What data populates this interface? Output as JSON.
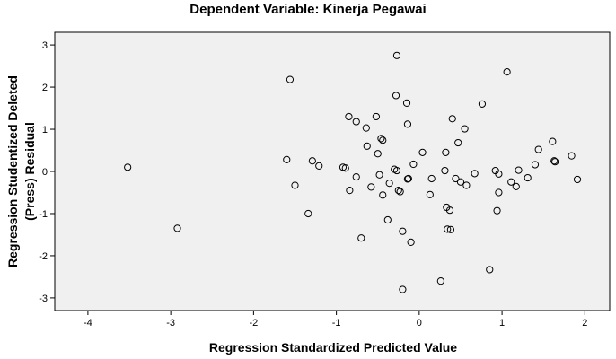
{
  "chart_data": {
    "type": "scatter",
    "title": "Dependent Variable: Kinerja Pegawai",
    "xlabel": "Regression Standardized Predicted Value",
    "ylabel_line1": "Regression Studentized Deleted",
    "ylabel_line2": "(Press) Residual",
    "xlim": [
      -4.4,
      2.3
    ],
    "ylim": [
      -3.3,
      3.3
    ],
    "xticks": [
      -4,
      -3,
      -2,
      -1,
      0,
      1,
      2
    ],
    "yticks": [
      -3,
      -2,
      -1,
      0,
      1,
      2,
      3
    ],
    "grid": false,
    "background": "#f0f0f0",
    "marker": "open-circle",
    "points": [
      [
        -3.52,
        0.1
      ],
      [
        -2.92,
        -1.35
      ],
      [
        -1.6,
        0.28
      ],
      [
        -1.56,
        2.18
      ],
      [
        -1.5,
        -0.33
      ],
      [
        -1.34,
        -1.0
      ],
      [
        -1.29,
        0.25
      ],
      [
        -1.21,
        0.13
      ],
      [
        -0.92,
        0.1
      ],
      [
        -0.89,
        0.08
      ],
      [
        -0.85,
        1.3
      ],
      [
        -0.84,
        -0.45
      ],
      [
        -0.76,
        1.18
      ],
      [
        -0.76,
        -0.13
      ],
      [
        -0.7,
        -1.58
      ],
      [
        -0.64,
        1.03
      ],
      [
        -0.63,
        0.6
      ],
      [
        -0.58,
        -0.37
      ],
      [
        -0.52,
        1.3
      ],
      [
        -0.5,
        0.42
      ],
      [
        -0.48,
        -0.08
      ],
      [
        -0.46,
        0.78
      ],
      [
        -0.44,
        0.74
      ],
      [
        -0.44,
        -0.56
      ],
      [
        -0.38,
        -1.15
      ],
      [
        -0.36,
        -0.28
      ],
      [
        -0.3,
        0.05
      ],
      [
        -0.28,
        1.8
      ],
      [
        -0.27,
        2.75
      ],
      [
        -0.27,
        0.02
      ],
      [
        -0.25,
        -0.45
      ],
      [
        -0.23,
        -0.48
      ],
      [
        -0.2,
        -2.8
      ],
      [
        -0.2,
        -1.42
      ],
      [
        -0.15,
        1.62
      ],
      [
        -0.14,
        -0.18
      ],
      [
        -0.14,
        1.12
      ],
      [
        -0.13,
        -0.17
      ],
      [
        -0.1,
        -1.68
      ],
      [
        -0.07,
        0.17
      ],
      [
        0.04,
        0.45
      ],
      [
        0.13,
        -0.55
      ],
      [
        0.15,
        -0.17
      ],
      [
        0.26,
        -2.6
      ],
      [
        0.32,
        0.45
      ],
      [
        0.31,
        0.02
      ],
      [
        0.33,
        -0.85
      ],
      [
        0.34,
        -1.37
      ],
      [
        0.37,
        -0.92
      ],
      [
        0.38,
        -1.38
      ],
      [
        0.4,
        1.25
      ],
      [
        0.44,
        -0.17
      ],
      [
        0.47,
        0.68
      ],
      [
        0.5,
        -0.25
      ],
      [
        0.55,
        1.01
      ],
      [
        0.57,
        -0.33
      ],
      [
        0.67,
        -0.05
      ],
      [
        0.76,
        1.6
      ],
      [
        0.85,
        -2.33
      ],
      [
        0.92,
        0.02
      ],
      [
        0.94,
        -0.93
      ],
      [
        0.96,
        -0.5
      ],
      [
        0.96,
        -0.06
      ],
      [
        1.06,
        2.36
      ],
      [
        1.11,
        -0.25
      ],
      [
        1.17,
        -0.36
      ],
      [
        1.2,
        0.03
      ],
      [
        1.31,
        -0.15
      ],
      [
        1.4,
        0.16
      ],
      [
        1.44,
        0.52
      ],
      [
        1.61,
        0.71
      ],
      [
        1.63,
        0.25
      ],
      [
        1.64,
        0.23
      ],
      [
        1.84,
        0.37
      ],
      [
        1.91,
        -0.19
      ]
    ]
  }
}
